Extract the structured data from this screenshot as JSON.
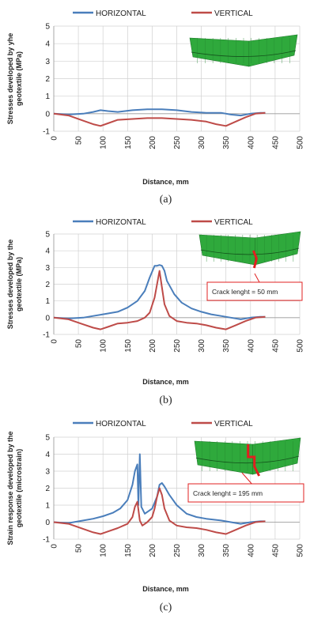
{
  "colors": {
    "horizontal": "#4a7ebb",
    "vertical": "#be4b48",
    "mesh": "#2fa93c",
    "crack": "#e02020"
  },
  "legend": {
    "horizontal": "HORIZONTAL",
    "vertical": "VERTICAL"
  },
  "chart_data": [
    {
      "type": "line",
      "panel": "(a)",
      "ylabel": "Stresses developed by yhe geotextile (MPa)",
      "xlabel": "Distance, mm",
      "xlim": [
        0,
        500
      ],
      "ylim": [
        -1,
        5
      ],
      "xticks": [
        0,
        50,
        100,
        150,
        200,
        250,
        300,
        350,
        400,
        450,
        500
      ],
      "yticks": [
        -1,
        0,
        1,
        2,
        3,
        4,
        5
      ],
      "grid": true,
      "legend_position": "top",
      "callout": "",
      "series": [
        {
          "name": "HORIZONTAL",
          "x": [
            0,
            30,
            60,
            80,
            95,
            110,
            130,
            160,
            190,
            220,
            250,
            280,
            310,
            340,
            360,
            380,
            400,
            420,
            430
          ],
          "y": [
            0,
            -0.05,
            0,
            0.1,
            0.2,
            0.15,
            0.1,
            0.2,
            0.25,
            0.25,
            0.2,
            0.1,
            0.05,
            0.05,
            -0.05,
            -0.1,
            0,
            0.05,
            0.05
          ]
        },
        {
          "name": "VERTICAL",
          "x": [
            0,
            30,
            60,
            80,
            95,
            110,
            130,
            160,
            190,
            220,
            250,
            280,
            310,
            330,
            350,
            370,
            390,
            410,
            430
          ],
          "y": [
            0,
            -0.1,
            -0.4,
            -0.6,
            -0.7,
            -0.55,
            -0.35,
            -0.3,
            -0.25,
            -0.25,
            -0.3,
            -0.35,
            -0.45,
            -0.6,
            -0.7,
            -0.45,
            -0.2,
            0,
            0.05
          ]
        }
      ]
    },
    {
      "type": "line",
      "panel": "(b)",
      "ylabel": "Stresses developed by the geotextile (MPa)",
      "xlabel": "Distance, mm",
      "xlim": [
        0,
        500
      ],
      "ylim": [
        -1,
        5
      ],
      "xticks": [
        0,
        50,
        100,
        150,
        200,
        250,
        300,
        350,
        400,
        450,
        500
      ],
      "yticks": [
        -1,
        0,
        1,
        2,
        3,
        4,
        5
      ],
      "grid": true,
      "legend_position": "top",
      "callout": "Crack lenght = 50 mm",
      "series": [
        {
          "name": "HORIZONTAL",
          "x": [
            0,
            30,
            60,
            80,
            100,
            130,
            150,
            170,
            185,
            195,
            205,
            210,
            215,
            220,
            225,
            230,
            245,
            260,
            280,
            300,
            320,
            340,
            360,
            380,
            400,
            420,
            430
          ],
          "y": [
            0,
            -0.05,
            0,
            0.1,
            0.2,
            0.35,
            0.6,
            1.0,
            1.6,
            2.4,
            3.1,
            3.1,
            3.15,
            3.1,
            2.8,
            2.2,
            1.4,
            0.9,
            0.55,
            0.35,
            0.2,
            0.1,
            0,
            -0.1,
            0,
            0.05,
            0.05
          ]
        },
        {
          "name": "VERTICAL",
          "x": [
            0,
            30,
            60,
            80,
            95,
            110,
            130,
            150,
            170,
            185,
            195,
            205,
            210,
            215,
            220,
            225,
            235,
            250,
            270,
            290,
            310,
            330,
            350,
            370,
            390,
            410,
            430
          ],
          "y": [
            0,
            -0.1,
            -0.4,
            -0.6,
            -0.7,
            -0.55,
            -0.35,
            -0.3,
            -0.2,
            0,
            0.3,
            1.2,
            2.0,
            2.8,
            1.8,
            0.8,
            0.1,
            -0.2,
            -0.3,
            -0.35,
            -0.45,
            -0.6,
            -0.7,
            -0.45,
            -0.2,
            0,
            0.05
          ]
        }
      ]
    },
    {
      "type": "line",
      "panel": "(c)",
      "ylabel": "Strain response developed by the geotextile (microstrain)",
      "xlabel": "Distance, mm",
      "xlim": [
        0,
        500
      ],
      "ylim": [
        -1,
        5
      ],
      "xticks": [
        0,
        50,
        100,
        150,
        200,
        250,
        300,
        350,
        400,
        450,
        500
      ],
      "yticks": [
        -1,
        0,
        1,
        2,
        3,
        4,
        5
      ],
      "grid": true,
      "legend_position": "top",
      "callout": "Crack lenght = 195 mm",
      "series": [
        {
          "name": "HORIZONTAL",
          "x": [
            0,
            30,
            60,
            80,
            100,
            120,
            135,
            150,
            160,
            165,
            170,
            172,
            175,
            178,
            185,
            200,
            210,
            215,
            220,
            225,
            235,
            250,
            270,
            290,
            310,
            340,
            360,
            380,
            400,
            420,
            430
          ],
          "y": [
            0,
            -0.05,
            0.1,
            0.2,
            0.35,
            0.55,
            0.8,
            1.3,
            2.2,
            3.0,
            3.4,
            1.0,
            4.0,
            0.9,
            0.5,
            0.8,
            1.5,
            2.2,
            2.3,
            2.1,
            1.6,
            1.0,
            0.5,
            0.3,
            0.2,
            0.1,
            0,
            -0.1,
            0,
            0.05,
            0.05
          ]
        },
        {
          "name": "VERTICAL",
          "x": [
            0,
            30,
            60,
            80,
            95,
            110,
            130,
            150,
            160,
            165,
            170,
            175,
            180,
            190,
            200,
            205,
            210,
            215,
            220,
            225,
            235,
            250,
            270,
            290,
            310,
            330,
            350,
            370,
            390,
            410,
            430
          ],
          "y": [
            0,
            -0.1,
            -0.4,
            -0.6,
            -0.7,
            -0.55,
            -0.35,
            -0.1,
            0.3,
            0.9,
            1.2,
            0.1,
            -0.2,
            0,
            0.3,
            0.8,
            1.5,
            2.0,
            1.6,
            0.8,
            0.1,
            -0.2,
            -0.3,
            -0.35,
            -0.45,
            -0.6,
            -0.7,
            -0.45,
            -0.2,
            0,
            0.05
          ]
        }
      ]
    }
  ]
}
